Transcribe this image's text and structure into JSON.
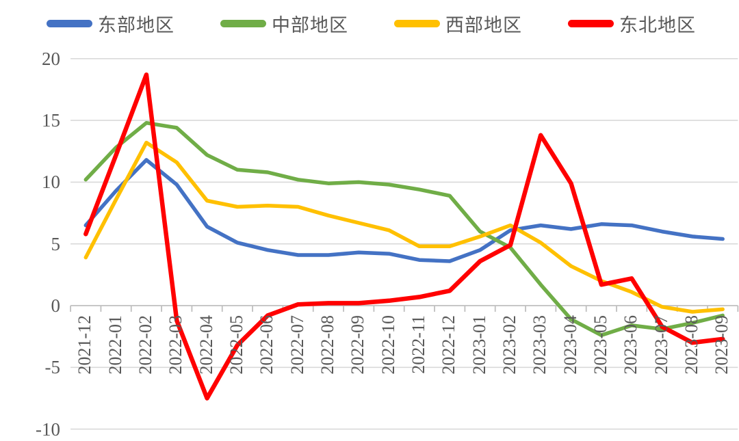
{
  "chart_data": {
    "type": "line",
    "title": "",
    "xlabel": "",
    "ylabel": "",
    "grid": true,
    "legend_position": "top",
    "ylim": [
      -10,
      20
    ],
    "y_ticks": [
      20,
      15,
      10,
      5,
      0,
      -5,
      -10
    ],
    "categories": [
      "2021-12",
      "2022-01",
      "2022-02",
      "2022-03",
      "2022-04",
      "2022-05",
      "2022-06",
      "2022-07",
      "2022-08",
      "2022-09",
      "2022-10",
      "2022-11",
      "2022-12",
      "2023-01",
      "2023-02",
      "2023-03",
      "2023-04",
      "2023-05",
      "2023-06",
      "2023-07",
      "2023-08",
      "2023-09"
    ],
    "series": [
      {
        "name": "东部地区",
        "color": "#4472C4",
        "values": [
          6.5,
          9.3,
          11.8,
          9.8,
          6.4,
          5.1,
          4.5,
          4.1,
          4.1,
          4.3,
          4.2,
          3.7,
          3.6,
          4.5,
          6.1,
          6.5,
          6.2,
          6.6,
          6.5,
          6.0,
          5.6,
          5.4
        ]
      },
      {
        "name": "中部地区",
        "color": "#70AD47",
        "values": [
          10.2,
          12.8,
          14.8,
          14.4,
          12.2,
          11.0,
          10.8,
          10.2,
          9.9,
          10.0,
          9.8,
          9.4,
          8.9,
          6.0,
          4.7,
          1.7,
          -1.1,
          -2.4,
          -1.6,
          -1.9,
          -1.4,
          -0.8
        ]
      },
      {
        "name": "西部地区",
        "color": "#FFC000",
        "values": [
          3.9,
          8.6,
          13.2,
          11.6,
          8.5,
          8.0,
          8.1,
          8.0,
          7.3,
          6.7,
          6.1,
          4.8,
          4.8,
          5.6,
          6.5,
          5.1,
          3.2,
          2.0,
          1.1,
          -0.1,
          -0.5,
          -0.3
        ]
      },
      {
        "name": "东北地区",
        "color": "#FF0000",
        "values": [
          5.8,
          12.2,
          18.7,
          -1.2,
          -7.5,
          -3.2,
          -0.8,
          0.1,
          0.2,
          0.2,
          0.4,
          0.7,
          1.2,
          3.6,
          4.9,
          13.8,
          9.9,
          1.7,
          2.2,
          -1.7,
          -3.0,
          -2.7
        ]
      }
    ],
    "colors": {
      "gridline": "#D9D9D9",
      "axis_line": "#BFBFBF",
      "axis_text": "#595959"
    }
  }
}
